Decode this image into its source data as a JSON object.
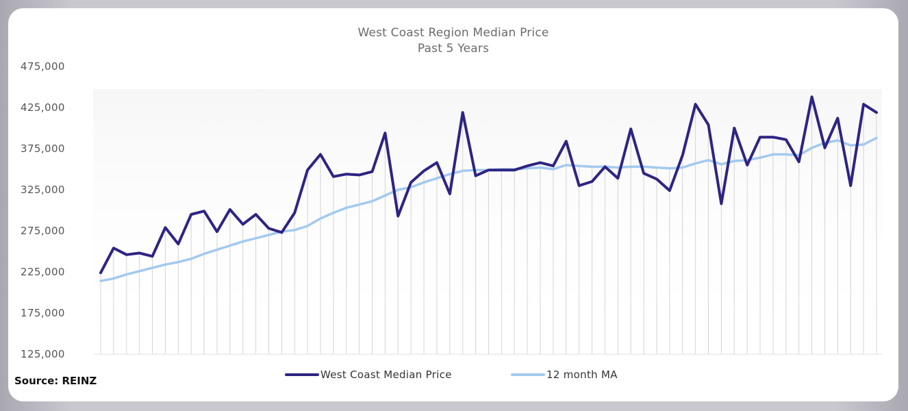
{
  "chart_data": {
    "type": "line",
    "title": "West Coast Region Median Price",
    "subtitle": "Past 5 Years",
    "xlabel": "",
    "ylabel": "",
    "ylim": [
      125000,
      475000
    ],
    "y_ticks": [
      "125,000",
      "175,000",
      "225,000",
      "275,000",
      "325,000",
      "375,000",
      "425,000",
      "475,000"
    ],
    "y_tick_values": [
      125000,
      175000,
      225000,
      275000,
      325000,
      375000,
      425000,
      475000
    ],
    "grid": false,
    "legend_position": "bottom",
    "series": [
      {
        "name": "West Coast Median Price",
        "color": "#2e2483",
        "values": [
          224000,
          254000,
          246000,
          248000,
          244000,
          279000,
          259000,
          295000,
          299000,
          274000,
          301000,
          283000,
          295000,
          278000,
          273000,
          297000,
          349000,
          368000,
          341000,
          344000,
          343000,
          347000,
          394000,
          293000,
          334000,
          348000,
          358000,
          320000,
          419000,
          342000,
          349000,
          349000,
          349000,
          354000,
          358000,
          354000,
          384000,
          330000,
          335000,
          353000,
          339000,
          399000,
          345000,
          338000,
          324000,
          367000,
          429000,
          404000,
          308000,
          400000,
          355000,
          389000,
          389000,
          386000,
          359000,
          438000,
          376000,
          412000,
          330000,
          429000,
          419000
        ]
      },
      {
        "name": "12 month MA",
        "color": "#a3c9ef",
        "values": [
          214000,
          217000,
          222000,
          226000,
          230000,
          234000,
          237000,
          241000,
          247000,
          252000,
          257000,
          262000,
          266000,
          270000,
          274000,
          276000,
          281000,
          290000,
          297000,
          303000,
          307000,
          311000,
          318000,
          325000,
          328000,
          334000,
          339000,
          344000,
          348000,
          349000,
          349000,
          350000,
          350000,
          351000,
          352000,
          350000,
          355000,
          354000,
          353000,
          353000,
          352000,
          353000,
          353000,
          352000,
          351000,
          352000,
          357000,
          361000,
          356000,
          360000,
          361000,
          364000,
          368000,
          368000,
          367000,
          376000,
          382000,
          385000,
          379000,
          380000,
          388000
        ]
      }
    ]
  },
  "source": "Source: REINZ"
}
